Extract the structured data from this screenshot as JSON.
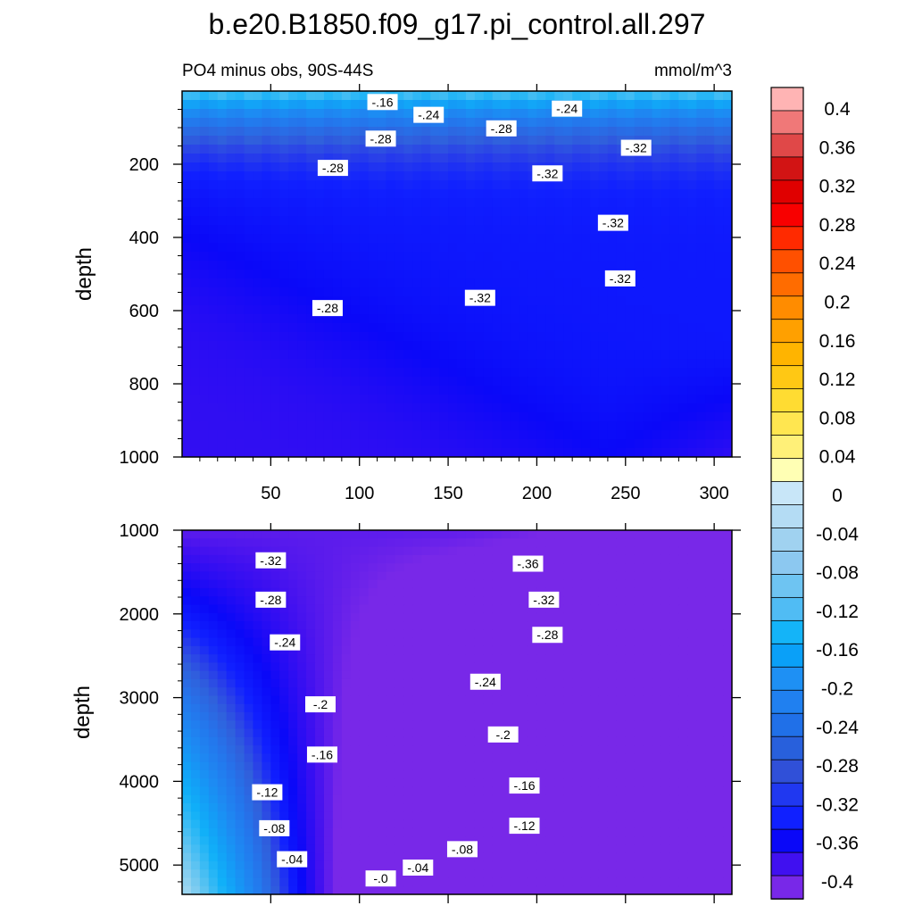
{
  "title": "b.e20.B1850.f09_g17.pi_control.all.297",
  "subtitle_left": "PO4 minus obs, 90S-44S",
  "subtitle_right": "mmol/m^3",
  "colorbar": {
    "labels": [
      "0.4",
      "0.36",
      "0.32",
      "0.28",
      "0.24",
      "0.2",
      "0.16",
      "0.12",
      "0.08",
      "0.04",
      "0",
      "-0.04",
      "-0.08",
      "-0.12",
      "-0.16",
      "-0.2",
      "-0.24",
      "-0.28",
      "-0.32",
      "-0.36",
      "-0.4"
    ],
    "colors": [
      "#ffb4b4",
      "#f07878",
      "#e04848",
      "#d21414",
      "#e00000",
      "#f80000",
      "#ff2a00",
      "#ff5000",
      "#ff6c00",
      "#ff8c00",
      "#ffa000",
      "#ffb400",
      "#ffc814",
      "#ffdc32",
      "#ffe650",
      "#fff078",
      "#ffffb4",
      "#c8e6f8",
      "#b4dcf4",
      "#a0d2f0",
      "#8cc8f0",
      "#6ec4f2",
      "#50bcf4",
      "#14b4f8",
      "#0aa0f8",
      "#1e90f4",
      "#2080f0",
      "#2070e8",
      "#2860dc",
      "#3050d8",
      "#2038f0",
      "#1020ff",
      "#0a08f8",
      "#4010f0",
      "#7828e8"
    ]
  },
  "chart_data": [
    {
      "type": "heatmap",
      "name": "upper",
      "xlabel": "",
      "ylabel": "depth",
      "xlim": [
        0,
        310
      ],
      "ylim": [
        1000,
        0
      ],
      "x_ticks": [
        "50",
        "100",
        "150",
        "200",
        "250",
        "300"
      ],
      "y_ticks": [
        "200",
        "400",
        "600",
        "800",
        "1000"
      ],
      "contour_levels": [
        -0.4,
        -0.36,
        -0.32,
        -0.28,
        -0.24,
        -0.2,
        -0.16,
        -0.12,
        -0.08,
        -0.04,
        0
      ],
      "contour_labels": [
        {
          "text": "-.16",
          "x": 113,
          "y": 30
        },
        {
          "text": "-.24",
          "x": 139,
          "y": 65
        },
        {
          "text": "-.24",
          "x": 217,
          "y": 48
        },
        {
          "text": "-.28",
          "x": 112,
          "y": 130
        },
        {
          "text": "-.28",
          "x": 180,
          "y": 102
        },
        {
          "text": "-.28",
          "x": 85,
          "y": 210
        },
        {
          "text": "-.28",
          "x": 82,
          "y": 593
        },
        {
          "text": "-.32",
          "x": 206,
          "y": 225
        },
        {
          "text": "-.32",
          "x": 256,
          "y": 155
        },
        {
          "text": "-.32",
          "x": 243,
          "y": 360
        },
        {
          "text": "-.32",
          "x": 247,
          "y": 512
        },
        {
          "text": "-.32",
          "x": 168,
          "y": 565
        }
      ]
    },
    {
      "type": "heatmap",
      "name": "lower",
      "xlabel": "",
      "ylabel": "depth",
      "xlim": [
        0,
        310
      ],
      "ylim": [
        5350,
        1000
      ],
      "y_ticks": [
        "1000",
        "2000",
        "3000",
        "4000",
        "5000"
      ],
      "contour_levels": [
        -0.4,
        -0.36,
        -0.32,
        -0.28,
        -0.24,
        -0.2,
        -0.16,
        -0.12,
        -0.08,
        -0.04,
        0
      ],
      "contour_labels": [
        {
          "text": "-.32",
          "x": 50,
          "y": 1360
        },
        {
          "text": "-.36",
          "x": 195,
          "y": 1400
        },
        {
          "text": "-.28",
          "x": 50,
          "y": 1830
        },
        {
          "text": "-.32",
          "x": 204,
          "y": 1830
        },
        {
          "text": "-.24",
          "x": 58,
          "y": 2340
        },
        {
          "text": "-.28",
          "x": 206,
          "y": 2250
        },
        {
          "text": "-.24",
          "x": 171,
          "y": 2810
        },
        {
          "text": "-.2",
          "x": 78,
          "y": 3080
        },
        {
          "text": "-.2",
          "x": 181,
          "y": 3440
        },
        {
          "text": "-.16",
          "x": 79,
          "y": 3680
        },
        {
          "text": "-.16",
          "x": 193,
          "y": 4050
        },
        {
          "text": "-.12",
          "x": 48,
          "y": 4130
        },
        {
          "text": "-.12",
          "x": 193,
          "y": 4530
        },
        {
          "text": "-.08",
          "x": 52,
          "y": 4560
        },
        {
          "text": "-.08",
          "x": 158,
          "y": 4810
        },
        {
          "text": "-.04",
          "x": 62,
          "y": 4930
        },
        {
          "text": "-.04",
          "x": 133,
          "y": 5030
        },
        {
          "text": "-.0",
          "x": 112,
          "y": 5160
        }
      ]
    }
  ]
}
